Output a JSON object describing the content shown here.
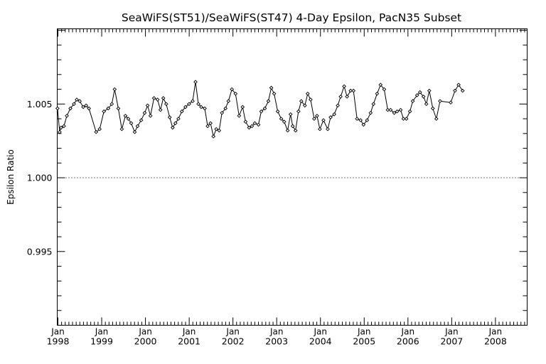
{
  "chart_data": {
    "type": "line",
    "title": "SeaWiFS(ST51)/SeaWiFS(ST47) 4-Day Epsilon, PacN35 Subset",
    "ylabel": "Epsilon Ratio",
    "xlabel": "",
    "ylim": [
      0.99,
      1.0101
    ],
    "xlim": [
      1997.9836,
      2008.725
    ],
    "y_ticks": [
      {
        "value": 0.995,
        "label": "0.995"
      },
      {
        "value": 1.0,
        "label": "1.000"
      },
      {
        "value": 1.005,
        "label": "1.005"
      }
    ],
    "x_ticks": [
      {
        "value": 1998.0,
        "month": "Jan",
        "year": "1998"
      },
      {
        "value": 1999.0,
        "month": "Jan",
        "year": "1999"
      },
      {
        "value": 2000.0,
        "month": "Jan",
        "year": "2000"
      },
      {
        "value": 2001.0,
        "month": "Jan",
        "year": "2001"
      },
      {
        "value": 2002.0,
        "month": "Jan",
        "year": "2002"
      },
      {
        "value": 2003.0,
        "month": "Jan",
        "year": "2003"
      },
      {
        "value": 2004.0,
        "month": "Jan",
        "year": "2004"
      },
      {
        "value": 2005.0,
        "month": "Jan",
        "year": "2005"
      },
      {
        "value": 2006.0,
        "month": "Jan",
        "year": "2006"
      },
      {
        "value": 2007.0,
        "month": "Jan",
        "year": "2007"
      },
      {
        "value": 2008.0,
        "month": "Jan",
        "year": "2008"
      }
    ],
    "reference_line": {
      "value": 1.0,
      "style": "dotted"
    },
    "grid": false,
    "series": [
      {
        "marker": "diamond",
        "points": [
          [
            1997.99,
            1.0047
          ],
          [
            1998.039,
            1.0031
          ],
          [
            1998.072,
            1.0034
          ],
          [
            1998.137,
            1.0035
          ],
          [
            1998.203,
            1.0042
          ],
          [
            1998.284,
            1.0047
          ],
          [
            1998.366,
            1.005
          ],
          [
            1998.431,
            1.0053
          ],
          [
            1998.497,
            1.0052
          ],
          [
            1998.578,
            1.0048
          ],
          [
            1998.643,
            1.0049
          ],
          [
            1998.709,
            1.0047
          ],
          [
            1998.872,
            1.0031
          ],
          [
            1998.954,
            1.0033
          ],
          [
            1999.052,
            1.0045
          ],
          [
            1999.15,
            1.0047
          ],
          [
            1999.232,
            1.005
          ],
          [
            1999.297,
            1.006
          ],
          [
            1999.379,
            1.0047
          ],
          [
            1999.461,
            1.0033
          ],
          [
            1999.542,
            1.0042
          ],
          [
            1999.608,
            1.004
          ],
          [
            1999.673,
            1.0037
          ],
          [
            1999.755,
            1.0031
          ],
          [
            1999.82,
            1.0035
          ],
          [
            1999.902,
            1.0039
          ],
          [
            1999.983,
            1.0044
          ],
          [
            2000.049,
            1.0049
          ],
          [
            2000.114,
            1.0042
          ],
          [
            2000.196,
            1.0054
          ],
          [
            2000.277,
            1.0053
          ],
          [
            2000.343,
            1.0046
          ],
          [
            2000.408,
            1.0054
          ],
          [
            2000.474,
            1.005
          ],
          [
            2000.555,
            1.0041
          ],
          [
            2000.621,
            1.0034
          ],
          [
            2000.686,
            1.0037
          ],
          [
            2000.752,
            1.004
          ],
          [
            2000.833,
            1.0045
          ],
          [
            2000.915,
            1.0048
          ],
          [
            2000.997,
            1.005
          ],
          [
            2001.079,
            1.0052
          ],
          [
            2001.144,
            1.0065
          ],
          [
            2001.209,
            1.005
          ],
          [
            2001.275,
            1.0048
          ],
          [
            2001.356,
            1.0047
          ],
          [
            2001.422,
            1.0035
          ],
          [
            2001.487,
            1.0037
          ],
          [
            2001.553,
            1.0028
          ],
          [
            2001.618,
            1.0033
          ],
          [
            2001.683,
            1.0032
          ],
          [
            2001.749,
            1.0044
          ],
          [
            2001.83,
            1.0047
          ],
          [
            2001.896,
            1.0052
          ],
          [
            2001.977,
            1.006
          ],
          [
            2002.059,
            1.0057
          ],
          [
            2002.141,
            1.0042
          ],
          [
            2002.222,
            1.0048
          ],
          [
            2002.288,
            1.0038
          ],
          [
            2002.369,
            1.0034
          ],
          [
            2002.435,
            1.0035
          ],
          [
            2002.5,
            1.0037
          ],
          [
            2002.582,
            1.0036
          ],
          [
            2002.647,
            1.0045
          ],
          [
            2002.729,
            1.0047
          ],
          [
            2002.81,
            1.0052
          ],
          [
            2002.876,
            1.0061
          ],
          [
            2002.941,
            1.0057
          ],
          [
            2003.023,
            1.0045
          ],
          [
            2003.104,
            1.004
          ],
          [
            2003.17,
            1.0038
          ],
          [
            2003.251,
            1.0032
          ],
          [
            2003.317,
            1.0043
          ],
          [
            2003.366,
            1.0035
          ],
          [
            2003.431,
            1.0032
          ],
          [
            2003.497,
            1.0045
          ],
          [
            2003.562,
            1.0052
          ],
          [
            2003.644,
            1.0049
          ],
          [
            2003.709,
            1.0057
          ],
          [
            2003.775,
            1.0053
          ],
          [
            2003.856,
            1.004
          ],
          [
            2003.922,
            1.0042
          ],
          [
            2003.987,
            1.0033
          ],
          [
            2004.069,
            1.0039
          ],
          [
            2004.167,
            1.0033
          ],
          [
            2004.232,
            1.0041
          ],
          [
            2004.314,
            1.0043
          ],
          [
            2004.396,
            1.0049
          ],
          [
            2004.461,
            1.0055
          ],
          [
            2004.543,
            1.0062
          ],
          [
            2004.608,
            1.0055
          ],
          [
            2004.69,
            1.0059
          ],
          [
            2004.755,
            1.0059
          ],
          [
            2004.837,
            1.004
          ],
          [
            2004.918,
            1.0039
          ],
          [
            2004.984,
            1.0036
          ],
          [
            2005.065,
            1.0039
          ],
          [
            2005.147,
            1.0044
          ],
          [
            2005.212,
            1.005
          ],
          [
            2005.294,
            1.0057
          ],
          [
            2005.375,
            1.0063
          ],
          [
            2005.457,
            1.006
          ],
          [
            2005.539,
            1.0046
          ],
          [
            2005.604,
            1.0046
          ],
          [
            2005.686,
            1.0044
          ],
          [
            2005.751,
            1.0045
          ],
          [
            2005.833,
            1.0046
          ],
          [
            2005.898,
            1.004
          ],
          [
            2005.964,
            1.004
          ],
          [
            2006.045,
            1.0045
          ],
          [
            2006.111,
            1.0052
          ],
          [
            2006.209,
            1.0056
          ],
          [
            2006.274,
            1.0058
          ],
          [
            2006.356,
            1.0055
          ],
          [
            2006.421,
            1.005
          ],
          [
            2006.487,
            1.0059
          ],
          [
            2006.569,
            1.0047
          ],
          [
            2006.65,
            1.004
          ],
          [
            2006.732,
            1.0052
          ],
          [
            2006.978,
            1.0051
          ],
          [
            2007.076,
            1.0059
          ],
          [
            2007.158,
            1.0063
          ],
          [
            2007.25,
            1.0059
          ]
        ]
      }
    ]
  }
}
